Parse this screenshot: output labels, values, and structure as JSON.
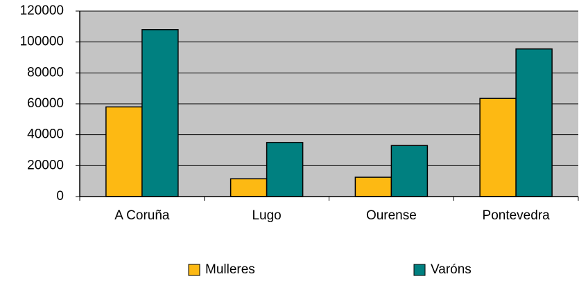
{
  "chart_data": {
    "type": "bar",
    "categories": [
      "A Coruña",
      "Lugo",
      "Ourense",
      "Pontevedra"
    ],
    "series": [
      {
        "name": "Mulleres",
        "color": "#fdb913",
        "values": [
          58000,
          11500,
          12500,
          63500
        ]
      },
      {
        "name": "Varóns",
        "color": "#008080",
        "values": [
          108000,
          35000,
          33000,
          95500
        ]
      }
    ],
    "ylim": [
      0,
      120000
    ],
    "yticks": [
      0,
      20000,
      40000,
      60000,
      80000,
      100000,
      120000
    ],
    "grid": true,
    "legend": "bottom"
  }
}
